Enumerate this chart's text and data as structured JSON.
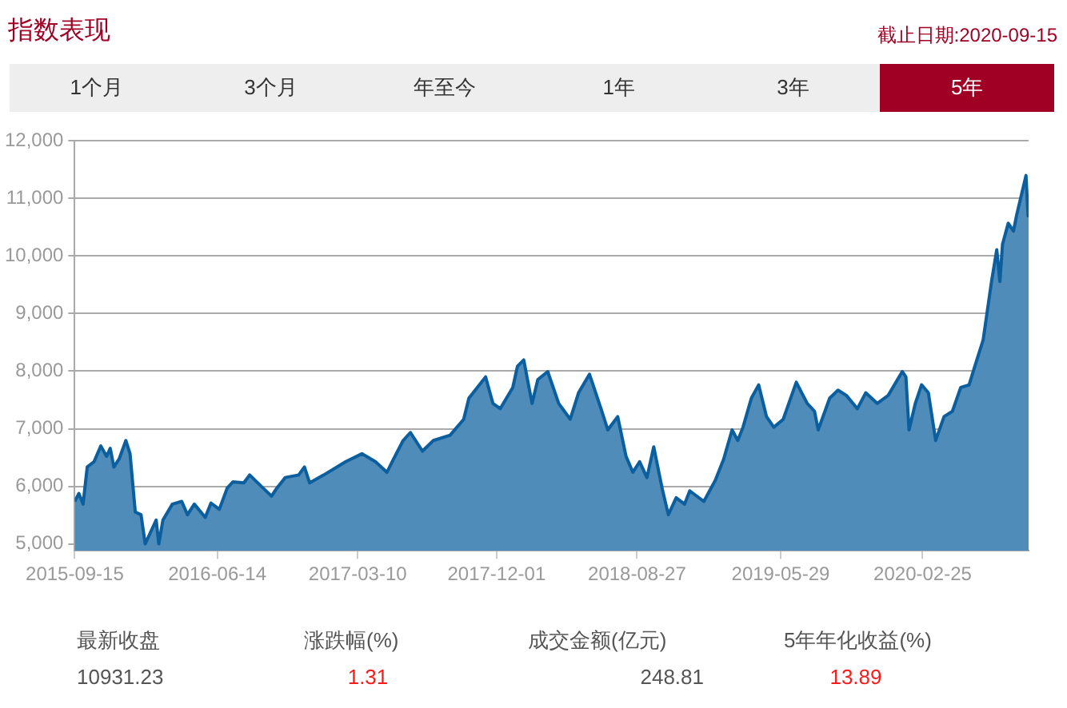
{
  "chart_data": {
    "type": "area",
    "title": "指数表现",
    "subtitle": "截止日期:2020-09-15",
    "annotations": [
      "1个月",
      "3个月",
      "年至今",
      "1年",
      "3年",
      "5年",
      "最新收盘",
      "涨跌幅(%)",
      "成交金额(亿元)",
      "5年年化收益(%)",
      "10931.23",
      "1.31",
      "248.81",
      "13.89"
    ],
    "x": [
      "2015-09-15",
      "2015-09-23",
      "2015-10-01",
      "2015-10-09",
      "2015-10-22",
      "2015-11-04",
      "2015-11-15",
      "2015-11-22",
      "2015-11-29",
      "2015-12-09",
      "2015-12-22",
      "2015-12-30",
      "2016-01-09",
      "2016-01-20",
      "2016-01-28",
      "2016-02-18",
      "2016-02-23",
      "2016-03-02",
      "2016-03-20",
      "2016-04-07",
      "2016-04-18",
      "2016-05-01",
      "2016-05-22",
      "2016-06-02",
      "2016-06-18",
      "2016-07-03",
      "2016-07-14",
      "2016-08-04",
      "2016-08-15",
      "2016-09-10",
      "2016-09-26",
      "2016-10-06",
      "2016-10-22",
      "2016-11-17",
      "2016-11-28",
      "2016-12-08",
      "2017-01-04",
      "2017-02-15",
      "2017-03-18",
      "2017-04-13",
      "2017-05-05",
      "2017-05-15",
      "2017-06-05",
      "2017-06-19",
      "2017-07-12",
      "2017-08-02",
      "2017-09-03",
      "2017-09-29",
      "2017-10-09",
      "2017-10-25",
      "2017-11-10",
      "2017-11-24",
      "2017-12-08",
      "2018-01-01",
      "2018-01-10",
      "2018-01-22",
      "2018-02-07",
      "2018-02-18",
      "2018-03-09",
      "2018-03-30",
      "2018-04-21",
      "2018-05-07",
      "2018-05-28",
      "2018-06-19",
      "2018-07-02",
      "2018-07-21",
      "2018-08-06",
      "2018-08-19",
      "2018-09-01",
      "2018-09-15",
      "2018-09-28",
      "2018-10-14",
      "2018-10-26",
      "2018-11-10",
      "2018-11-26",
      "2018-12-06",
      "2019-01-02",
      "2019-01-24",
      "2019-02-09",
      "2019-02-25",
      "2019-03-08",
      "2019-03-18",
      "2019-04-03",
      "2019-04-17",
      "2019-05-02",
      "2019-05-16",
      "2019-06-03",
      "2019-06-28",
      "2019-07-19",
      "2019-08-02",
      "2019-08-09",
      "2019-08-31",
      "2019-09-16",
      "2019-10-02",
      "2019-10-23",
      "2019-11-08",
      "2019-11-30",
      "2019-12-21",
      "2020-01-17",
      "2020-01-24",
      "2020-01-30",
      "2020-02-11",
      "2020-02-23",
      "2020-03-07",
      "2020-03-21",
      "2020-04-06",
      "2020-04-22",
      "2020-05-08",
      "2020-05-24",
      "2020-06-04",
      "2020-06-20",
      "2020-07-06",
      "2020-07-16",
      "2020-07-22",
      "2020-07-27",
      "2020-08-07",
      "2020-08-17",
      "2020-08-23",
      "2020-09-10",
      "2020-09-14",
      "2020-09-15"
    ],
    "series": [
      {
        "color": "#0b5f9e",
        "values": [
          5737,
          5875,
          5690,
          6335,
          6427,
          6700,
          6520,
          6660,
          6335,
          6473,
          6795,
          6565,
          5552,
          5506,
          5000,
          5414,
          5000,
          5414,
          5690,
          5737,
          5506,
          5690,
          5460,
          5709,
          5600,
          5967,
          6077,
          6059,
          6197,
          5967,
          5829,
          5967,
          6151,
          6197,
          6335,
          6059,
          6197,
          6427,
          6565,
          6427,
          6243,
          6427,
          6795,
          6934,
          6611,
          6795,
          6888,
          7164,
          7532,
          7716,
          7900,
          7440,
          7348,
          7716,
          8085,
          8195,
          7440,
          7854,
          7993,
          7440,
          7164,
          7624,
          7947,
          7348,
          6980,
          7210,
          6519,
          6243,
          6427,
          6151,
          6685,
          5967,
          5506,
          5801,
          5690,
          5921,
          5737,
          6105,
          6473,
          6980,
          6796,
          7026,
          7532,
          7762,
          7210,
          7026,
          7164,
          7808,
          7440,
          7302,
          6980,
          7532,
          7670,
          7578,
          7348,
          7624,
          7440,
          7578,
          7993,
          7900,
          6980,
          7440,
          7762,
          7624,
          6796,
          7210,
          7302,
          7716,
          7762,
          8085,
          8545,
          9558,
          10110,
          9558,
          10203,
          10571,
          10433,
          10709,
          11400,
          10700,
          10900
        ]
      }
    ],
    "xlim": [
      "2015-09-15",
      "2020-09-15"
    ],
    "xticks": [
      "2015-09-15",
      "2016-06-14",
      "2017-03-10",
      "2017-12-01",
      "2018-08-27",
      "2019-05-29",
      "2020-02-25"
    ],
    "ylim": [
      4880,
      12000
    ],
    "yticks": [
      {
        "value": 5000,
        "label": "5,000"
      },
      {
        "value": 6000,
        "label": "6,000"
      },
      {
        "value": 7000,
        "label": "7,000"
      },
      {
        "value": 8000,
        "label": "8,000"
      },
      {
        "value": 9000,
        "label": "9,000"
      },
      {
        "value": 10000,
        "label": "10,000"
      },
      {
        "value": 11000,
        "label": "11,000"
      },
      {
        "value": 12000,
        "label": "12,000"
      }
    ],
    "grid": "y",
    "legend": false,
    "marker": "none",
    "line_style": "solid"
  }
}
